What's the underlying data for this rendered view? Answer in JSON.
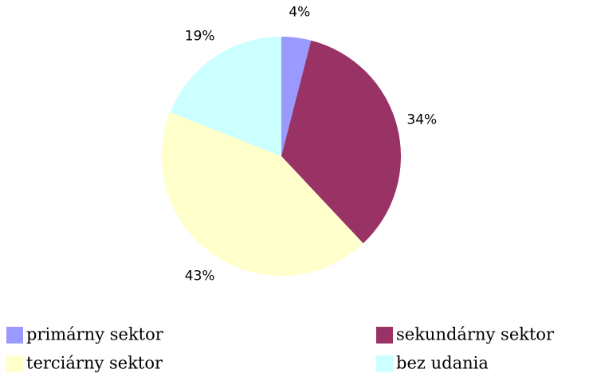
{
  "chart_data": {
    "type": "pie",
    "categories": [
      "primárny sektor",
      "sekundárny sektor",
      "terciárny sektor",
      "bez udania"
    ],
    "values": [
      4,
      34,
      43,
      19
    ],
    "value_labels": [
      "4%",
      "34%",
      "43%",
      "19%"
    ],
    "colors": [
      "#9999ff",
      "#993366",
      "#ffffcc",
      "#ccffff"
    ]
  }
}
